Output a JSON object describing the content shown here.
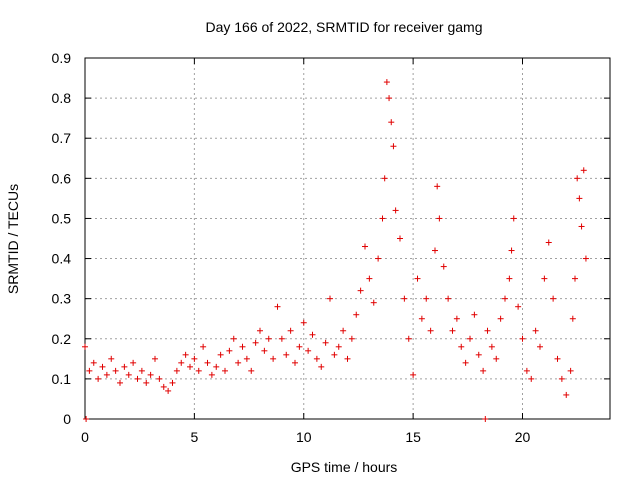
{
  "chart_data": {
    "type": "scatter",
    "title": "Day 166 of 2022, SRMTID for receiver gamg",
    "xlabel": "GPS time / hours",
    "ylabel": "SRMTID / TECUs",
    "xlim": [
      0,
      24
    ],
    "ylim": [
      0,
      0.9
    ],
    "xticks": [
      0,
      5,
      10,
      15,
      20
    ],
    "yticks": [
      0,
      0.1,
      0.2,
      0.3,
      0.4,
      0.5,
      0.6,
      0.7,
      0.8,
      0.9
    ],
    "xtick_labels": [
      "0",
      "5",
      "10",
      "15",
      "20"
    ],
    "ytick_labels": [
      "0",
      "0.1",
      "0.2",
      "0.3",
      "0.4",
      "0.5",
      "0.6",
      "0.7",
      "0.8",
      "0.9"
    ],
    "grid": true,
    "marker_color": "#e00000",
    "series": [
      {
        "name": "SRMTID",
        "marker": "plus",
        "x": [
          0.0,
          0.2,
          0.4,
          0.6,
          0.8,
          1.0,
          1.2,
          1.4,
          1.6,
          1.8,
          2.0,
          2.2,
          2.4,
          2.6,
          2.8,
          3.0,
          3.2,
          3.4,
          3.6,
          3.8,
          4.0,
          4.2,
          4.4,
          4.6,
          4.8,
          5.0,
          5.2,
          5.4,
          5.6,
          5.8,
          6.0,
          6.2,
          6.4,
          6.6,
          6.8,
          7.0,
          7.2,
          7.4,
          7.6,
          7.8,
          8.0,
          8.2,
          8.4,
          8.6,
          8.8,
          9.0,
          9.2,
          9.4,
          9.6,
          9.8,
          10.0,
          10.2,
          10.4,
          10.6,
          10.8,
          11.0,
          11.2,
          11.4,
          11.6,
          11.8,
          12.0,
          12.2,
          12.4,
          12.6,
          12.8,
          13.0,
          13.2,
          13.4,
          13.6,
          13.7,
          13.8,
          13.9,
          14.0,
          14.1,
          14.2,
          14.4,
          14.6,
          14.8,
          15.0,
          15.2,
          15.4,
          15.6,
          15.8,
          16.0,
          16.1,
          16.2,
          16.4,
          16.6,
          16.8,
          17.0,
          17.2,
          17.4,
          17.6,
          17.8,
          18.0,
          18.2,
          18.4,
          18.6,
          18.8,
          19.0,
          19.2,
          19.4,
          19.5,
          19.6,
          19.8,
          20.0,
          20.2,
          20.4,
          20.6,
          20.8,
          21.0,
          21.2,
          21.4,
          21.6,
          21.8,
          22.0,
          22.2,
          22.3,
          22.4,
          22.5,
          22.6,
          22.7,
          22.8,
          22.9,
          0.05,
          18.3
        ],
        "y": [
          0.18,
          0.12,
          0.14,
          0.1,
          0.13,
          0.11,
          0.15,
          0.12,
          0.09,
          0.13,
          0.11,
          0.14,
          0.1,
          0.12,
          0.09,
          0.11,
          0.15,
          0.1,
          0.08,
          0.07,
          0.09,
          0.12,
          0.14,
          0.16,
          0.13,
          0.15,
          0.12,
          0.18,
          0.14,
          0.11,
          0.13,
          0.16,
          0.12,
          0.17,
          0.2,
          0.14,
          0.18,
          0.15,
          0.12,
          0.19,
          0.22,
          0.17,
          0.2,
          0.15,
          0.28,
          0.2,
          0.16,
          0.22,
          0.14,
          0.18,
          0.24,
          0.17,
          0.21,
          0.15,
          0.13,
          0.19,
          0.3,
          0.16,
          0.18,
          0.22,
          0.15,
          0.2,
          0.26,
          0.32,
          0.43,
          0.35,
          0.29,
          0.4,
          0.5,
          0.6,
          0.84,
          0.8,
          0.74,
          0.68,
          0.52,
          0.45,
          0.3,
          0.2,
          0.11,
          0.35,
          0.25,
          0.3,
          0.22,
          0.42,
          0.58,
          0.5,
          0.38,
          0.3,
          0.22,
          0.25,
          0.18,
          0.14,
          0.2,
          0.26,
          0.16,
          0.12,
          0.22,
          0.18,
          0.15,
          0.25,
          0.3,
          0.35,
          0.42,
          0.5,
          0.28,
          0.2,
          0.12,
          0.1,
          0.22,
          0.18,
          0.35,
          0.44,
          0.3,
          0.15,
          0.1,
          0.06,
          0.12,
          0.25,
          0.35,
          0.6,
          0.55,
          0.48,
          0.62,
          0.4,
          0.0,
          0.0
        ]
      }
    ]
  }
}
